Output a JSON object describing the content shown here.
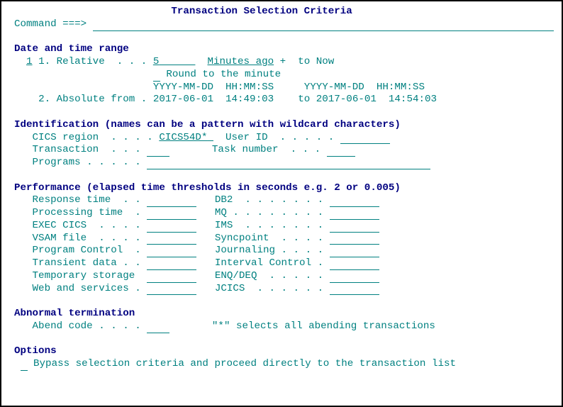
{
  "title": "Transaction Selection Criteria",
  "command_label": "Command ===>",
  "sections": {
    "date": {
      "heading": "Date and time range",
      "selector": "1",
      "relative_label": "1. Relative  . . .",
      "relative_value": "5",
      "relative_unit": "Minutes ago",
      "plus_label": "+  to Now",
      "round_label": "Round to the minute",
      "ymd_label1": "YYYY-MM-DD  HH:MM:SS",
      "ymd_label2": "YYYY-MM-DD  HH:MM:SS",
      "absolute_label": "2. Absolute from .",
      "from_date": "2017-06-01",
      "from_time": "14:49:03",
      "to_label": "to",
      "to_date": "2017-06-01",
      "to_time": "14:54:03"
    },
    "ident": {
      "heading": "Identification (names can be a pattern with wildcard characters)",
      "cics_label": "CICS region  . . . .",
      "cics_value": "CICS54D*",
      "userid_label": "User ID  . . . . .",
      "tran_label": "Transaction  . . .",
      "task_label": "Task number  . . .",
      "prog_label": "Programs . . . . ."
    },
    "perf": {
      "heading": "Performance (elapsed time thresholds in seconds e.g. 2 or 0.005)",
      "rows": [
        {
          "l": "Response time  . .",
          "r": "DB2  . . . . . . ."
        },
        {
          "l": "Processing time  .",
          "r": "MQ . . . . . . . ."
        },
        {
          "l": "EXEC CICS  . . . .",
          "r": "IMS  . . . . . . ."
        },
        {
          "l": "VSAM file  . . . .",
          "r": "Syncpoint  . . . ."
        },
        {
          "l": "Program Control  .",
          "r": "Journaling . . . ."
        },
        {
          "l": "Transient data . .",
          "r": "Interval Control ."
        },
        {
          "l": "Temporary storage ",
          "r": "ENQ/DEQ  . . . . ."
        },
        {
          "l": "Web and services .",
          "r": "JCICS  . . . . . ."
        }
      ]
    },
    "abend": {
      "heading": "Abnormal termination",
      "label": "Abend code . . . .",
      "hint": "\"*\" selects all abending transactions"
    },
    "options": {
      "heading": "Options",
      "label": "Bypass selection criteria and proceed directly to the transaction list"
    }
  }
}
